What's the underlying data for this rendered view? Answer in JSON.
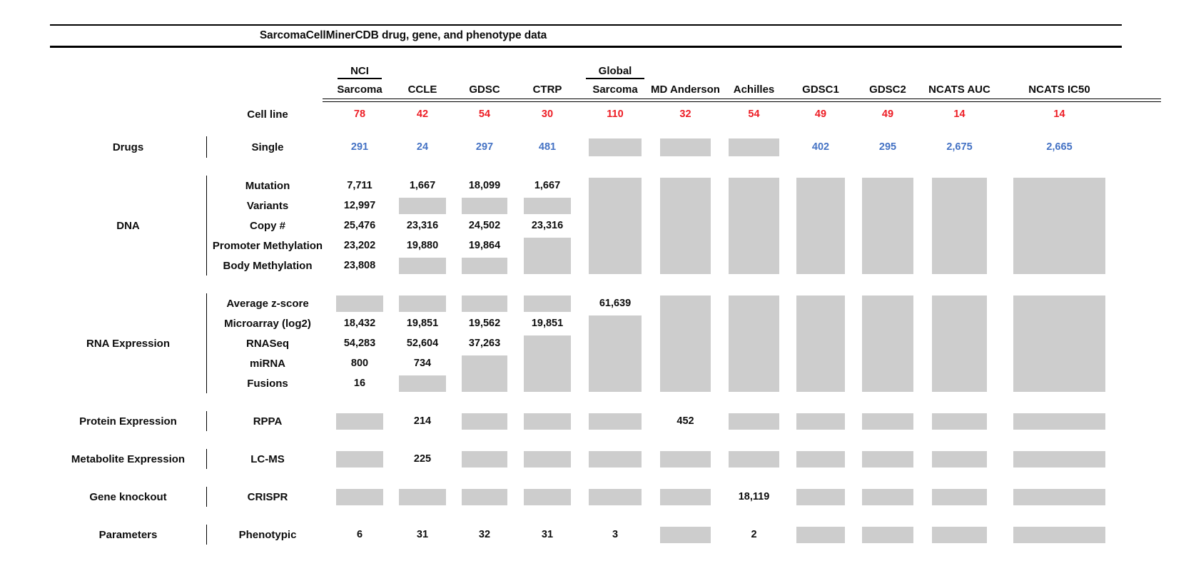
{
  "figure_title": "SarcomaCellMinerCDB drug, gene, and phenotype data",
  "colors": {
    "cell_line_count_red": "#ed1c24",
    "drug_count_blue": "#4472c4",
    "no_data_block_gray": "#cdcdcd",
    "text": "#0d0d0d"
  },
  "chart_data": {
    "type": "table",
    "title": "SarcomaCellMinerCDB drug, gene, and phenotype data",
    "legend_hint": "numbers = feature counts; red row = cell line counts; blue row = drug counts; gray block = no data",
    "columns": [
      {
        "id": "nci-sarcoma",
        "label_top": "NCI",
        "label": "Sarcoma",
        "cell_lines": "78"
      },
      {
        "id": "ccle",
        "label": "CCLE",
        "cell_lines": "42"
      },
      {
        "id": "gdsc",
        "label": "GDSC",
        "cell_lines": "54"
      },
      {
        "id": "ctrp",
        "label": "CTRP",
        "cell_lines": "30"
      },
      {
        "id": "global-sarcoma",
        "label_top": "Global",
        "label": "Sarcoma",
        "cell_lines": "110"
      },
      {
        "id": "md-anderson",
        "label": "MD Anderson",
        "cell_lines": "32"
      },
      {
        "id": "achilles",
        "label": "Achilles",
        "cell_lines": "54"
      },
      {
        "id": "gdsc1",
        "label": "GDSC1",
        "cell_lines": "49"
      },
      {
        "id": "gdsc2",
        "label": "GDSC2",
        "cell_lines": "49"
      },
      {
        "id": "ncats-auc",
        "label": "NCATS AUC",
        "cell_lines": "14"
      },
      {
        "id": "ncats-ic50",
        "label": "NCATS IC50",
        "cell_lines": "14"
      }
    ],
    "cell_line_row": {
      "label": "Cell line",
      "values": [
        "78",
        "42",
        "54",
        "30",
        "110",
        "32",
        "54",
        "49",
        "49",
        "14",
        "14"
      ]
    },
    "cell_semantics": "string = value shown; integer n = gray no-data block spanning n rows; null = covered by block above",
    "sections": [
      {
        "category": "Drugs",
        "rows": [
          {
            "label": "Single",
            "value_color": "blue",
            "cells": [
              "291",
              "24",
              "297",
              "481",
              1,
              1,
              1,
              "402",
              "295",
              "2,675",
              "2,665"
            ]
          }
        ]
      },
      {
        "category": "DNA",
        "rows": [
          {
            "label": "Mutation",
            "cells": [
              "7,711",
              "1,667",
              "18,099",
              "1,667",
              5,
              5,
              5,
              5,
              5,
              5,
              5
            ]
          },
          {
            "label": "Variants",
            "cells": [
              "12,997",
              1,
              1,
              1,
              null,
              null,
              null,
              null,
              null,
              null,
              null
            ]
          },
          {
            "label": "Copy #",
            "cells": [
              "25,476",
              "23,316",
              "24,502",
              "23,316",
              null,
              null,
              null,
              null,
              null,
              null,
              null
            ]
          },
          {
            "label": "Promoter Methylation",
            "cells": [
              "23,202",
              "19,880",
              "19,864",
              2,
              null,
              null,
              null,
              null,
              null,
              null,
              null
            ]
          },
          {
            "label": "Body Methylation",
            "cells": [
              "23,808",
              1,
              1,
              null,
              null,
              null,
              null,
              null,
              null,
              null,
              null
            ]
          }
        ]
      },
      {
        "category": "RNA Expression",
        "rows": [
          {
            "label": "Average z-score",
            "cells": [
              1,
              1,
              1,
              1,
              "61,639",
              5,
              5,
              5,
              5,
              5,
              5
            ]
          },
          {
            "label": "Microarray (log2)",
            "cells": [
              "18,432",
              "19,851",
              "19,562",
              "19,851",
              4,
              null,
              null,
              null,
              null,
              null,
              null
            ]
          },
          {
            "label": "RNASeq",
            "cells": [
              "54,283",
              "52,604",
              "37,263",
              3,
              null,
              null,
              null,
              null,
              null,
              null,
              null
            ]
          },
          {
            "label": "miRNA",
            "cells": [
              "800",
              "734",
              2,
              null,
              null,
              null,
              null,
              null,
              null,
              null,
              null
            ]
          },
          {
            "label": "Fusions",
            "cells": [
              "16",
              1,
              null,
              null,
              null,
              null,
              null,
              null,
              null,
              null,
              null
            ]
          }
        ]
      },
      {
        "category": "Protein Expression",
        "rows": [
          {
            "label": "RPPA",
            "cells": [
              1,
              "214",
              1,
              1,
              1,
              "452",
              1,
              1,
              1,
              1,
              1
            ]
          }
        ]
      },
      {
        "category": "Metabolite Expression",
        "rows": [
          {
            "label": "LC-MS",
            "cells": [
              1,
              "225",
              1,
              1,
              1,
              1,
              1,
              1,
              1,
              1,
              1
            ]
          }
        ]
      },
      {
        "category": "Gene knockout",
        "rows": [
          {
            "label": "CRISPR",
            "cells": [
              1,
              1,
              1,
              1,
              1,
              1,
              "18,119",
              1,
              1,
              1,
              1
            ]
          }
        ]
      },
      {
        "category": "Parameters",
        "rows": [
          {
            "label": "Phenotypic",
            "cells": [
              "6",
              "31",
              "32",
              "31",
              "3",
              1,
              "2",
              1,
              1,
              1,
              1
            ]
          }
        ]
      }
    ]
  }
}
